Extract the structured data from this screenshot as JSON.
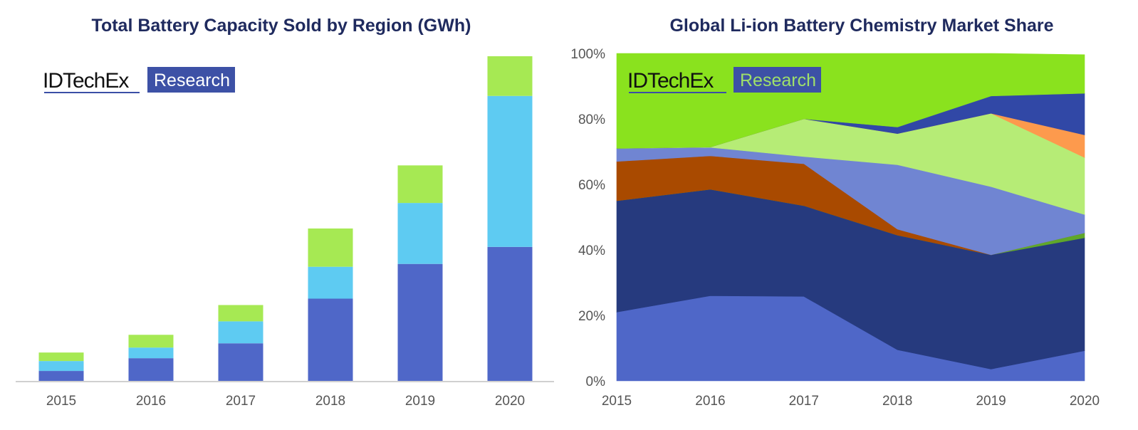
{
  "logo": {
    "brand": "IDTechEx",
    "tag": "Research"
  },
  "chart_data": [
    {
      "type": "bar",
      "stacked": true,
      "title": "Total Battery Capacity Sold by Region (GWh)",
      "categories": [
        "2015",
        "2016",
        "2017",
        "2018",
        "2019",
        "2020"
      ],
      "value_axis": "none printed; values are relative estimates read from bar heights",
      "series": [
        {
          "color": "#4f67c8",
          "values": [
            14,
            32,
            53,
            116,
            165,
            189
          ]
        },
        {
          "color": "#5ecbf2",
          "values": [
            14,
            15,
            31,
            45,
            86,
            213
          ]
        },
        {
          "color": "#a6e953",
          "values": [
            12,
            18,
            23,
            54,
            53,
            56
          ]
        }
      ],
      "ylim": [
        0,
        460
      ],
      "grid": false,
      "legend": "none"
    },
    {
      "type": "area",
      "stacked": true,
      "title": "Global Li-ion Battery Chemistry Market Share",
      "x": [
        "2015",
        "2016",
        "2017",
        "2018",
        "2019",
        "2020"
      ],
      "y_ticks": [
        "0%",
        "20%",
        "40%",
        "60%",
        "80%",
        "100%"
      ],
      "ylim": [
        0,
        100
      ],
      "unit": "%",
      "series": [
        {
          "color": "#4f67c8",
          "values": [
            21,
            26,
            25.8,
            9.5,
            3.6,
            9.2
          ]
        },
        {
          "color": "#263a7e",
          "values": [
            34,
            32.5,
            27.7,
            35,
            34.9,
            34.5
          ]
        },
        {
          "color": "#5fa72a",
          "values": [
            0,
            0,
            0,
            0,
            0,
            1.5
          ]
        },
        {
          "color": "#a94a00",
          "values": [
            12,
            10.2,
            12.8,
            1.8,
            0,
            0
          ]
        },
        {
          "color": "#7085d2",
          "values": [
            4,
            2.6,
            2.2,
            19.7,
            20.8,
            5.6
          ]
        },
        {
          "color": "#b6ec76",
          "values": [
            0,
            0.1,
            11.5,
            9.5,
            22.4,
            17.4
          ]
        },
        {
          "color": "#fd9a4d",
          "values": [
            0,
            0,
            0,
            0,
            0,
            6.9
          ]
        },
        {
          "color": "#3148a6",
          "values": [
            0,
            0,
            0,
            2,
            5.3,
            12.7
          ]
        },
        {
          "color": "#8ae21e",
          "values": [
            29,
            28.6,
            20,
            22.5,
            13,
            11.8
          ]
        }
      ],
      "grid": false,
      "legend": "none"
    }
  ]
}
